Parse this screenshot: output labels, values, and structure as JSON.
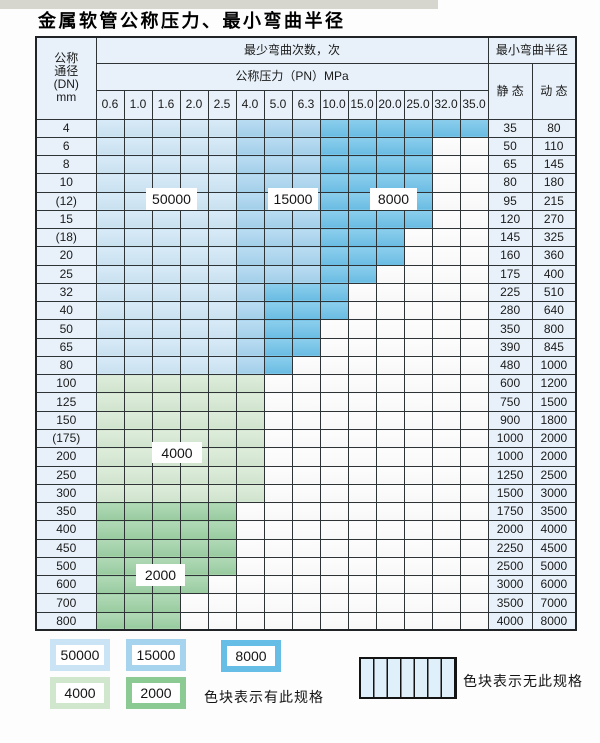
{
  "title": "金属软管公称压力、最小弯曲半径",
  "table": {
    "dn_header_lines": [
      "公称",
      "通径",
      "(DN)",
      "mm"
    ],
    "cycles_header": "最少弯曲次数，次",
    "pressure_header": "公称压力（PN）MPa",
    "radius_header": "最小弯曲半径",
    "static_header": "静 态",
    "dynamic_header": "动 态",
    "pressure_columns": [
      "0.6",
      "1.0",
      "1.6",
      "2.0",
      "2.5",
      "4.0",
      "5.0",
      "6.3",
      "10.0",
      "15.0",
      "20.0",
      "25.0",
      "32.0",
      "35.0"
    ],
    "cell_codes": {
      "L": "50000 cycles",
      "M": "15000 cycles",
      "D": "8000 cycles",
      "G": "4000 cycles",
      "H": "2000 cycles",
      "S": "no spec"
    },
    "rows": [
      {
        "dn": "4",
        "cells": "LLLLLMMMDDDDDD",
        "static": "35",
        "dynamic": "80"
      },
      {
        "dn": "6",
        "cells": "LLLLLMMMDDDDSS",
        "static": "50",
        "dynamic": "110"
      },
      {
        "dn": "8",
        "cells": "LLLLLMMMDDDDSS",
        "static": "65",
        "dynamic": "145"
      },
      {
        "dn": "10",
        "cells": "LLLLLMMMDDDDSS",
        "static": "80",
        "dynamic": "180"
      },
      {
        "dn": "(12)",
        "cells": "LLLLLMMMDDDDSS",
        "static": "95",
        "dynamic": "215"
      },
      {
        "dn": "15",
        "cells": "LLLLLMMMDDDDSS",
        "static": "120",
        "dynamic": "270"
      },
      {
        "dn": "(18)",
        "cells": "LLLLLMMMDDDSSS",
        "static": "145",
        "dynamic": "325"
      },
      {
        "dn": "20",
        "cells": "LLLLLMMMDDDSSS",
        "static": "160",
        "dynamic": "360"
      },
      {
        "dn": "25",
        "cells": "LLLLLMMMDDSSSS",
        "static": "175",
        "dynamic": "400"
      },
      {
        "dn": "32",
        "cells": "LLLLLMDDDSSSSS",
        "static": "225",
        "dynamic": "510"
      },
      {
        "dn": "40",
        "cells": "LLLLLMDDDSSSSS",
        "static": "280",
        "dynamic": "640"
      },
      {
        "dn": "50",
        "cells": "LLLLLMDDSSSSSS",
        "static": "350",
        "dynamic": "800"
      },
      {
        "dn": "65",
        "cells": "LLLLLMDDSSSSSS",
        "static": "390",
        "dynamic": "845"
      },
      {
        "dn": "80",
        "cells": "LLLLLMDSSSSSSS",
        "static": "480",
        "dynamic": "1000"
      },
      {
        "dn": "100",
        "cells": "GGGGGGSSSSSSSS",
        "static": "600",
        "dynamic": "1200"
      },
      {
        "dn": "125",
        "cells": "GGGGGGSSSSSSSS",
        "static": "750",
        "dynamic": "1500"
      },
      {
        "dn": "150",
        "cells": "GGGGGGSSSSSSSS",
        "static": "900",
        "dynamic": "1800"
      },
      {
        "dn": "(175)",
        "cells": "GGGGGGSSSSSSSS",
        "static": "1000",
        "dynamic": "2000"
      },
      {
        "dn": "200",
        "cells": "GGGGGGSSSSSSSS",
        "static": "1000",
        "dynamic": "2000"
      },
      {
        "dn": "250",
        "cells": "GGGGGGSSSSSSSS",
        "static": "1250",
        "dynamic": "2500"
      },
      {
        "dn": "300",
        "cells": "GGGGGGSSSSSSSS",
        "static": "1500",
        "dynamic": "3000"
      },
      {
        "dn": "350",
        "cells": "HHHHHSSSSSSSSS",
        "static": "1750",
        "dynamic": "3500"
      },
      {
        "dn": "400",
        "cells": "HHHHHSSSSSSSSS",
        "static": "2000",
        "dynamic": "4000"
      },
      {
        "dn": "450",
        "cells": "HHHHHSSSSSSSSS",
        "static": "2250",
        "dynamic": "4500"
      },
      {
        "dn": "500",
        "cells": "HHHHHSSSSSSSSS",
        "static": "2500",
        "dynamic": "5000"
      },
      {
        "dn": "600",
        "cells": "HHHHSSSSSSSSSS",
        "static": "3000",
        "dynamic": "6000"
      },
      {
        "dn": "700",
        "cells": "HHHSSSSSSSSSSS",
        "static": "3500",
        "dynamic": "7000"
      },
      {
        "dn": "800",
        "cells": "HHHSSSSSSSSSSS",
        "static": "4000",
        "dynamic": "8000"
      }
    ]
  },
  "cycle_labels": {
    "c50000": "50000",
    "c15000": "15000",
    "c8000": "8000",
    "c4000": "4000",
    "c2000": "2000"
  },
  "legend": {
    "swatches": [
      {
        "label": "50000",
        "type": "l"
      },
      {
        "label": "15000",
        "type": "m"
      },
      {
        "label": "8000",
        "type": "d"
      },
      {
        "label": "4000",
        "type": "g"
      },
      {
        "label": "2000",
        "type": "h"
      }
    ],
    "has_spec_note": "色块表示有此规格",
    "no_spec_note": "色块表示无此规格"
  },
  "colors": {
    "cycles_50000": "#cde5f5",
    "cycles_15000": "#a6d3ee",
    "cycles_8000": "#6cc0e8",
    "cycles_4000": "#d4e8d1",
    "cycles_2000": "#9bcfa2",
    "header_fill": "#e8f1f9",
    "grid_line": "#2e3336"
  }
}
